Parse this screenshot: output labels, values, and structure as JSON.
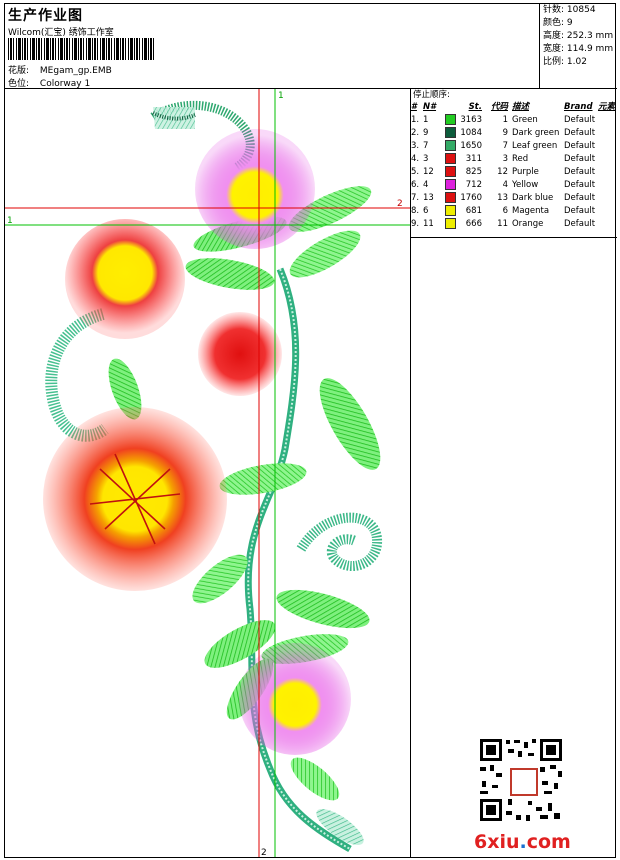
{
  "header": {
    "title": "生产作业图",
    "company": "Wilcom(汇宝) 绣饰工作室",
    "design_label": "花版:",
    "design_value": "MEgam_gp.EMB",
    "colorway_label": "色位:",
    "colorway_value": "Colorway 1"
  },
  "stats": [
    {
      "label": "针数:",
      "value": "10854"
    },
    {
      "label": "颜色:",
      "value": "9"
    },
    {
      "label": "高度:",
      "value": "252.3 mm"
    },
    {
      "label": "宽度:",
      "value": "114.9 mm"
    },
    {
      "label": "比例:",
      "value": "1.02"
    }
  ],
  "guides": {
    "v1": "1",
    "v2": "2",
    "h1": "1",
    "h2": "2"
  },
  "sequence": {
    "title": "停止顺序:",
    "columns": [
      "#",
      "N#",
      "St.",
      "代码",
      "描述",
      "Brand",
      "元素"
    ],
    "rows": [
      {
        "idx": "1.",
        "n": "1",
        "color": "#22cc22",
        "st": "3163",
        "code": "1",
        "desc": "Green",
        "brand": "Default"
      },
      {
        "idx": "2.",
        "n": "9",
        "color": "#0d5c3c",
        "st": "1084",
        "code": "9",
        "desc": "Dark green",
        "brand": "Default"
      },
      {
        "idx": "3.",
        "n": "7",
        "color": "#33aa66",
        "st": "1650",
        "code": "7",
        "desc": "Leaf green",
        "brand": "Default"
      },
      {
        "idx": "4.",
        "n": "3",
        "color": "#dd1111",
        "st": "311",
        "code": "3",
        "desc": "Red",
        "brand": "Default"
      },
      {
        "idx": "5.",
        "n": "12",
        "color": "#dd1111",
        "st": "825",
        "code": "12",
        "desc": "Purple",
        "brand": "Default"
      },
      {
        "idx": "6.",
        "n": "4",
        "color": "#dd22dd",
        "st": "712",
        "code": "4",
        "desc": "Yellow",
        "brand": "Default"
      },
      {
        "idx": "7.",
        "n": "13",
        "color": "#dd1111",
        "st": "1760",
        "code": "13",
        "desc": "Dark blue",
        "brand": "Default"
      },
      {
        "idx": "8.",
        "n": "6",
        "color": "#eeee00",
        "st": "681",
        "code": "6",
        "desc": "Magenta",
        "brand": "Default"
      },
      {
        "idx": "9.",
        "n": "11",
        "color": "#eeee00",
        "st": "666",
        "code": "11",
        "desc": "Orange",
        "brand": "Default"
      }
    ]
  },
  "watermark": {
    "site_main": "6xiu",
    "site_dot": ".",
    "site_tld": "com"
  }
}
